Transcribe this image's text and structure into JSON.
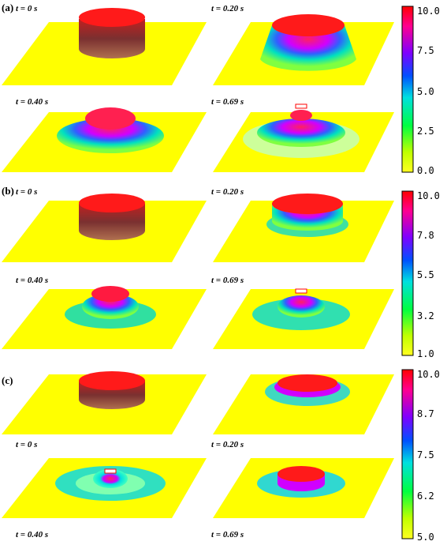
{
  "panels": [
    {
      "label": "(a)",
      "frames": [
        {
          "time": "t = 0 s"
        },
        {
          "time": "t = 0.20 s"
        },
        {
          "time": "t = 0.40 s"
        },
        {
          "time": "t = 0.69 s"
        }
      ],
      "colorbar": {
        "ticks": [
          "10.0",
          "7.5",
          "5.0",
          "2.5",
          "0.0"
        ]
      }
    },
    {
      "label": "(b)",
      "frames": [
        {
          "time": "t = 0 s"
        },
        {
          "time": "t = 0.20 s"
        },
        {
          "time": "t = 0.40 s"
        },
        {
          "time": "t = 0.69 s"
        }
      ],
      "colorbar": {
        "ticks": [
          "10.0",
          "7.8",
          "5.5",
          "3.2",
          "1.0"
        ]
      }
    },
    {
      "label": "(c)",
      "frames": [
        {
          "time": "t = 0 s"
        },
        {
          "time": "t = 0.20 s"
        },
        {
          "time": "t = 0.40 s"
        },
        {
          "time": "t = 0.69 s"
        }
      ],
      "colorbar": {
        "ticks": [
          "10.0",
          "8.7",
          "7.5",
          "6.2",
          "5.0"
        ]
      }
    }
  ],
  "colors": {
    "plane": "#ffff00",
    "top": "#ff1a1a",
    "gradient": [
      "#ff0000",
      "#ff00a0",
      "#8000ff",
      "#0040ff",
      "#00e0e0",
      "#00ff40",
      "#c0ff00",
      "#ffff00"
    ]
  }
}
